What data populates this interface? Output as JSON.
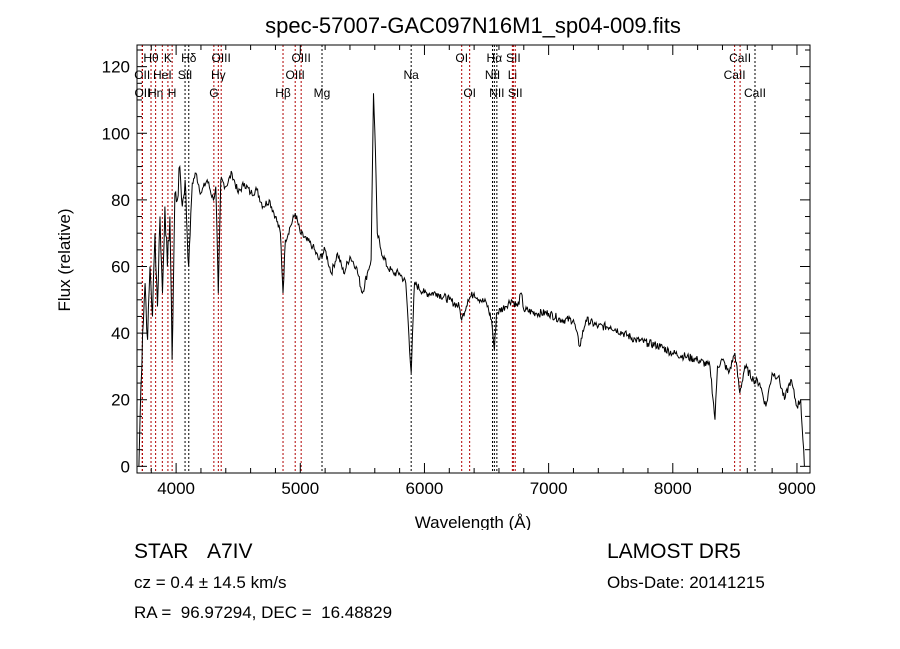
{
  "chart_data": {
    "type": "line",
    "title": "spec-57007-GAC097N16M1_sp04-009.fits",
    "xlabel": "Wavelength (Å)",
    "ylabel": "Flux (relative)",
    "xlim": [
      3685,
      9105
    ],
    "ylim": [
      -2,
      126.5
    ],
    "xticks": [
      4000,
      5000,
      6000,
      7000,
      8000,
      9000
    ],
    "yticks": [
      0,
      20,
      40,
      60,
      80,
      100,
      120
    ],
    "grid": false,
    "series": [
      {
        "name": "spectrum",
        "x": [
          3700,
          3710,
          3730,
          3750,
          3770,
          3790,
          3810,
          3830,
          3850,
          3870,
          3890,
          3910,
          3930,
          3950,
          3968,
          3990,
          4010,
          4030,
          4050,
          4072,
          4101,
          4130,
          4160,
          4200,
          4250,
          4300,
          4320,
          4340,
          4360,
          4400,
          4450,
          4500,
          4550,
          4600,
          4650,
          4700,
          4750,
          4800,
          4840,
          4861,
          4880,
          4920,
          4960,
          5000,
          5050,
          5100,
          5150,
          5200,
          5250,
          5300,
          5350,
          5400,
          5450,
          5500,
          5540,
          5570,
          5590,
          5605,
          5620,
          5650,
          5700,
          5750,
          5800,
          5850,
          5893,
          5920,
          6000,
          6100,
          6200,
          6280,
          6300,
          6350,
          6400,
          6450,
          6500,
          6540,
          6563,
          6580,
          6650,
          6700,
          6750,
          6780,
          6800,
          6900,
          7000,
          7100,
          7200,
          7250,
          7300,
          7400,
          7500,
          7600,
          7700,
          7800,
          7900,
          8000,
          8100,
          8200,
          8300,
          8340,
          8360,
          8400,
          8450,
          8500,
          8540,
          8580,
          8650,
          8700,
          8750,
          8800,
          8850,
          8900,
          8950,
          9000,
          9030,
          9060
        ],
        "y": [
          0,
          15,
          40,
          55,
          38,
          60,
          45,
          70,
          48,
          75,
          52,
          78,
          60,
          75,
          32,
          82,
          80,
          90,
          78,
          86,
          60,
          85,
          88,
          82,
          86,
          80,
          84,
          52,
          86,
          84,
          88,
          82,
          85,
          82,
          83,
          78,
          80,
          75,
          70,
          52,
          68,
          72,
          76,
          70,
          68,
          66,
          62,
          65,
          58,
          64,
          58,
          63,
          60,
          52,
          58,
          62,
          112,
          95,
          70,
          65,
          60,
          58,
          58,
          55,
          28,
          55,
          52,
          52,
          50,
          48,
          44,
          50,
          52,
          50,
          49,
          44,
          35,
          46,
          48,
          50,
          48,
          52,
          47,
          46,
          46,
          44,
          44,
          36,
          44,
          42,
          42,
          40,
          38,
          37,
          36,
          34,
          33,
          32,
          30,
          14,
          30,
          32,
          28,
          34,
          22,
          30,
          26,
          25,
          18,
          28,
          27,
          20,
          26,
          18,
          20,
          0
        ]
      }
    ],
    "lines": [
      {
        "label": "OII",
        "w": 3727,
        "row": 2,
        "color": "#b00000"
      },
      {
        "label": "OII",
        "w": 3729,
        "row": 3,
        "color": "#b00000"
      },
      {
        "label": "Hθ",
        "w": 3798,
        "row": 1,
        "color": "#b00000"
      },
      {
        "label": "Hη",
        "w": 3835,
        "row": 3,
        "color": "#b00000"
      },
      {
        "label": "HeI",
        "w": 3889,
        "row": 2,
        "color": "#b00000"
      },
      {
        "label": "K",
        "w": 3934,
        "row": 1,
        "color": "#b00000"
      },
      {
        "label": "H",
        "w": 3968,
        "row": 3,
        "color": "#b00000"
      },
      {
        "label": "SII",
        "w": 4072,
        "row": 2,
        "color": "#000000"
      },
      {
        "label": "Hδ",
        "w": 4102,
        "row": 1,
        "color": "#000000"
      },
      {
        "label": "G",
        "w": 4304,
        "row": 3,
        "color": "#b00000"
      },
      {
        "label": "Hγ",
        "w": 4340,
        "row": 2,
        "color": "#b00000"
      },
      {
        "label": "OIII",
        "w": 4363,
        "row": 1,
        "color": "#b00000"
      },
      {
        "label": "Hβ",
        "w": 4861,
        "row": 3,
        "color": "#b00000"
      },
      {
        "label": "OIII",
        "w": 4959,
        "row": 2,
        "color": "#b00000"
      },
      {
        "label": "OIII",
        "w": 5007,
        "row": 1,
        "color": "#b00000"
      },
      {
        "label": "Mg",
        "w": 5175,
        "row": 3,
        "color": "#000000"
      },
      {
        "label": "Na",
        "w": 5893,
        "row": 2,
        "color": "#000000"
      },
      {
        "label": "OI",
        "w": 6300,
        "row": 1,
        "color": "#b00000"
      },
      {
        "label": "OI",
        "w": 6364,
        "row": 3,
        "color": "#b00000"
      },
      {
        "label": "NII",
        "w": 6548,
        "row": 2,
        "color": "#000000"
      },
      {
        "label": "Hα",
        "w": 6563,
        "row": 1,
        "color": "#000000"
      },
      {
        "label": "NII",
        "w": 6583,
        "row": 3,
        "color": "#000000"
      },
      {
        "label": "Li",
        "w": 6708,
        "row": 2,
        "color": "#b00000"
      },
      {
        "label": "SII",
        "w": 6716,
        "row": 1,
        "color": "#b00000"
      },
      {
        "label": "SII",
        "w": 6731,
        "row": 3,
        "color": "#b00000"
      },
      {
        "label": "CaII",
        "w": 8498,
        "row": 2,
        "color": "#b00000"
      },
      {
        "label": "CaII",
        "w": 8542,
        "row": 1,
        "color": "#b00000"
      },
      {
        "label": "CaII",
        "w": 8662,
        "row": 3,
        "color": "#000000"
      }
    ]
  },
  "info": {
    "class": "STAR",
    "subclass": "A7IV",
    "cz": "cz = 0.4 ± 14.5 km/s",
    "radec": "RA =  96.97294, DEC =  16.48829",
    "survey": "LAMOST DR5",
    "obsdate": "Obs-Date: 20141215"
  }
}
